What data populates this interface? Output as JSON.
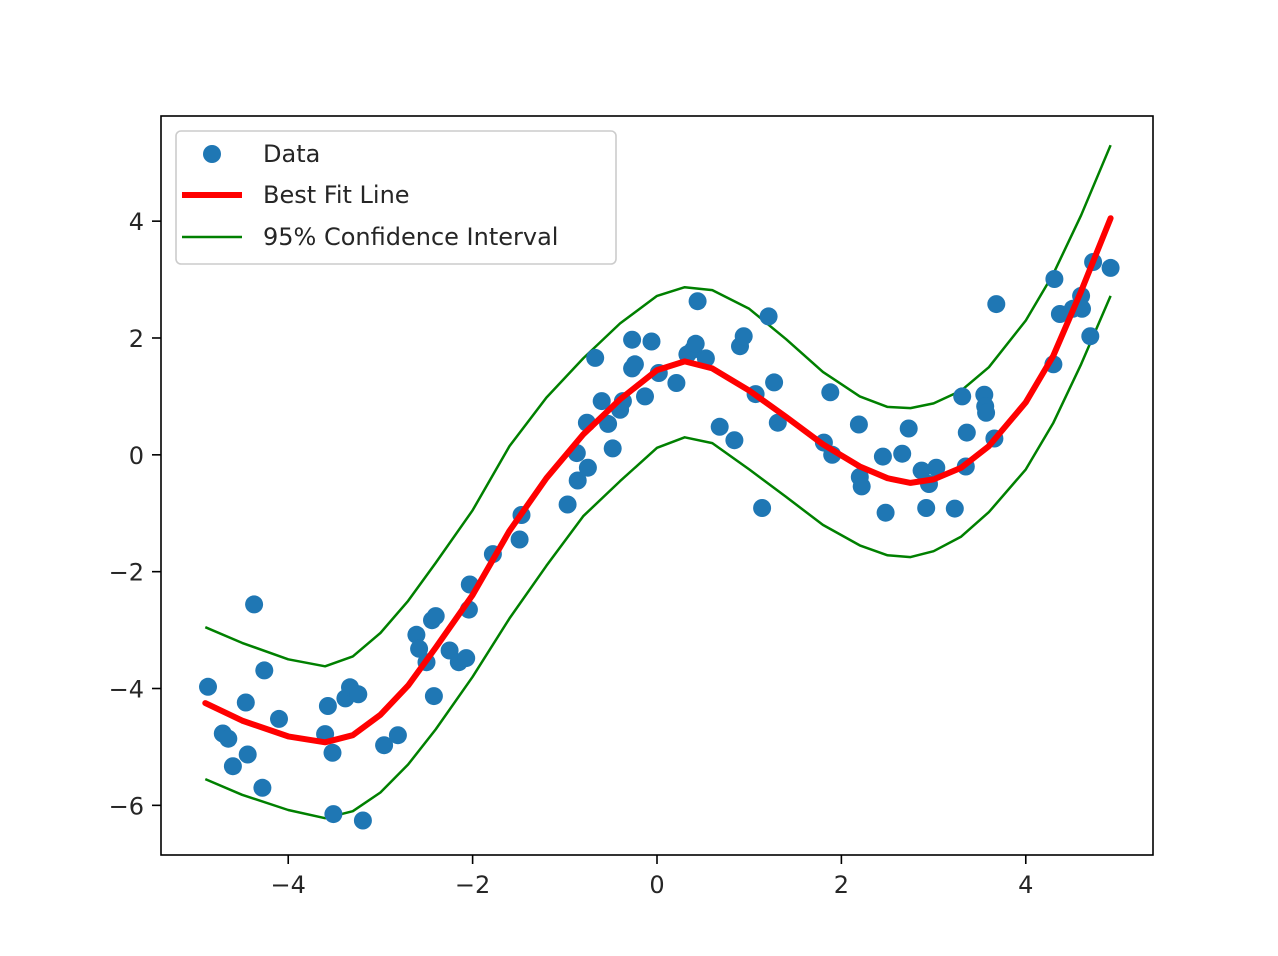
{
  "chart_data": {
    "type": "scatter",
    "title": "",
    "xlabel": "",
    "ylabel": "",
    "xlim": [
      -5.38,
      5.38
    ],
    "ylim": [
      -6.85,
      5.8
    ],
    "grid": false,
    "legend": {
      "placement": "upper-left",
      "entries": [
        "Data",
        "Best Fit Line",
        "95% Confidence Interval"
      ]
    },
    "colors": {
      "data": "#1f77b4",
      "fit": "#ff0000",
      "ci": "#008000",
      "axes": "#000000"
    },
    "x_ticks": [
      {
        "value": -4,
        "label": "−4"
      },
      {
        "value": -2,
        "label": "−2"
      },
      {
        "value": 0,
        "label": "0"
      },
      {
        "value": 2,
        "label": "2"
      },
      {
        "value": 4,
        "label": "4"
      }
    ],
    "y_ticks": [
      {
        "value": -6,
        "label": "−6"
      },
      {
        "value": -4,
        "label": "−4"
      },
      {
        "value": -2,
        "label": "−2"
      },
      {
        "value": 0,
        "label": "0"
      },
      {
        "value": 2,
        "label": "2"
      },
      {
        "value": 4,
        "label": "4"
      }
    ],
    "series": [
      {
        "name": "Data",
        "kind": "scatter",
        "points": [
          [
            -4.87,
            -3.97
          ],
          [
            -4.71,
            -4.77
          ],
          [
            -4.65,
            -4.86
          ],
          [
            -4.6,
            -5.33
          ],
          [
            -4.46,
            -4.24
          ],
          [
            -4.44,
            -5.13
          ],
          [
            -4.37,
            -2.56
          ],
          [
            -4.28,
            -5.7
          ],
          [
            -4.26,
            -3.69
          ],
          [
            -4.1,
            -4.52
          ],
          [
            -3.6,
            -4.78
          ],
          [
            -3.57,
            -4.3
          ],
          [
            -3.52,
            -5.1
          ],
          [
            -3.51,
            -6.15
          ],
          [
            -3.38,
            -4.17
          ],
          [
            -3.33,
            -3.98
          ],
          [
            -3.24,
            -4.1
          ],
          [
            -3.19,
            -6.26
          ],
          [
            -2.96,
            -4.97
          ],
          [
            -2.81,
            -4.8
          ],
          [
            -2.61,
            -3.08
          ],
          [
            -2.58,
            -3.32
          ],
          [
            -2.5,
            -3.55
          ],
          [
            -2.44,
            -2.83
          ],
          [
            -2.42,
            -4.13
          ],
          [
            -2.4,
            -2.76
          ],
          [
            -2.25,
            -3.35
          ],
          [
            -2.15,
            -3.55
          ],
          [
            -2.07,
            -3.48
          ],
          [
            -2.04,
            -2.65
          ],
          [
            -2.03,
            -2.22
          ],
          [
            -1.78,
            -1.7
          ],
          [
            -1.49,
            -1.45
          ],
          [
            -1.47,
            -1.03
          ],
          [
            -0.97,
            -0.85
          ],
          [
            -0.87,
            0.03
          ],
          [
            -0.86,
            -0.44
          ],
          [
            -0.76,
            0.55
          ],
          [
            -0.75,
            -0.22
          ],
          [
            -0.67,
            1.66
          ],
          [
            -0.6,
            0.92
          ],
          [
            -0.53,
            0.53
          ],
          [
            -0.48,
            0.11
          ],
          [
            -0.4,
            0.77
          ],
          [
            -0.37,
            0.92
          ],
          [
            -0.27,
            1.48
          ],
          [
            -0.27,
            1.97
          ],
          [
            -0.24,
            1.55
          ],
          [
            -0.13,
            1.0
          ],
          [
            -0.06,
            1.94
          ],
          [
            0.02,
            1.4
          ],
          [
            0.21,
            1.23
          ],
          [
            0.33,
            1.72
          ],
          [
            0.39,
            1.8
          ],
          [
            0.42,
            1.9
          ],
          [
            0.44,
            2.63
          ],
          [
            0.53,
            1.65
          ],
          [
            0.68,
            0.48
          ],
          [
            0.84,
            0.25
          ],
          [
            0.9,
            1.86
          ],
          [
            0.94,
            2.03
          ],
          [
            1.07,
            1.04
          ],
          [
            1.14,
            -0.91
          ],
          [
            1.21,
            2.37
          ],
          [
            1.27,
            1.24
          ],
          [
            1.31,
            0.55
          ],
          [
            1.81,
            0.21
          ],
          [
            1.88,
            1.07
          ],
          [
            1.9,
            0.0
          ],
          [
            2.19,
            0.52
          ],
          [
            2.2,
            -0.38
          ],
          [
            2.22,
            -0.54
          ],
          [
            2.45,
            -0.03
          ],
          [
            2.48,
            -0.99
          ],
          [
            2.66,
            0.02
          ],
          [
            2.73,
            0.45
          ],
          [
            2.87,
            -0.27
          ],
          [
            2.92,
            -0.91
          ],
          [
            2.95,
            -0.5
          ],
          [
            3.03,
            -0.22
          ],
          [
            3.23,
            -0.92
          ],
          [
            3.31,
            1.0
          ],
          [
            3.35,
            -0.2
          ],
          [
            3.36,
            0.38
          ],
          [
            3.55,
            1.03
          ],
          [
            3.56,
            0.83
          ],
          [
            3.57,
            0.72
          ],
          [
            3.66,
            0.28
          ],
          [
            3.68,
            2.58
          ],
          [
            4.3,
            1.55
          ],
          [
            4.31,
            3.01
          ],
          [
            4.37,
            2.41
          ],
          [
            4.51,
            2.5
          ],
          [
            4.6,
            2.72
          ],
          [
            4.61,
            2.5
          ],
          [
            4.7,
            2.03
          ],
          [
            4.73,
            3.3
          ],
          [
            4.92,
            3.2
          ]
        ]
      },
      {
        "name": "Best Fit Line",
        "kind": "line",
        "points": [
          [
            -4.9,
            -4.25
          ],
          [
            -4.5,
            -4.55
          ],
          [
            -4.0,
            -4.82
          ],
          [
            -3.6,
            -4.92
          ],
          [
            -3.3,
            -4.8
          ],
          [
            -3.0,
            -4.45
          ],
          [
            -2.7,
            -3.95
          ],
          [
            -2.4,
            -3.3
          ],
          [
            -2.0,
            -2.4
          ],
          [
            -1.6,
            -1.3
          ],
          [
            -1.2,
            -0.4
          ],
          [
            -0.8,
            0.35
          ],
          [
            -0.4,
            0.95
          ],
          [
            0.0,
            1.45
          ],
          [
            0.3,
            1.6
          ],
          [
            0.6,
            1.48
          ],
          [
            1.0,
            1.1
          ],
          [
            1.4,
            0.65
          ],
          [
            1.8,
            0.18
          ],
          [
            2.2,
            -0.2
          ],
          [
            2.5,
            -0.4
          ],
          [
            2.75,
            -0.48
          ],
          [
            3.0,
            -0.42
          ],
          [
            3.3,
            -0.22
          ],
          [
            3.6,
            0.15
          ],
          [
            4.0,
            0.9
          ],
          [
            4.3,
            1.7
          ],
          [
            4.6,
            2.8
          ],
          [
            4.92,
            4.05
          ]
        ]
      },
      {
        "name": "95% Confidence Interval",
        "kind": "line",
        "points": [
          [
            -4.9,
            -2.95
          ],
          [
            -4.5,
            -3.22
          ],
          [
            -4.0,
            -3.5
          ],
          [
            -3.6,
            -3.62
          ],
          [
            -3.3,
            -3.45
          ],
          [
            -3.0,
            -3.05
          ],
          [
            -2.7,
            -2.5
          ],
          [
            -2.4,
            -1.85
          ],
          [
            -2.0,
            -0.95
          ],
          [
            -1.6,
            0.15
          ],
          [
            -1.2,
            0.98
          ],
          [
            -0.8,
            1.65
          ],
          [
            -0.4,
            2.25
          ],
          [
            0.0,
            2.72
          ],
          [
            0.3,
            2.87
          ],
          [
            0.6,
            2.82
          ],
          [
            1.0,
            2.5
          ],
          [
            1.4,
            1.98
          ],
          [
            1.8,
            1.42
          ],
          [
            2.2,
            1.0
          ],
          [
            2.5,
            0.82
          ],
          [
            2.75,
            0.8
          ],
          [
            3.0,
            0.88
          ],
          [
            3.3,
            1.1
          ],
          [
            3.6,
            1.5
          ],
          [
            4.0,
            2.3
          ],
          [
            4.3,
            3.1
          ],
          [
            4.6,
            4.1
          ],
          [
            4.92,
            5.3
          ]
        ]
      },
      {
        "name": "95% Confidence Interval",
        "kind": "line",
        "points": [
          [
            -4.9,
            -5.55
          ],
          [
            -4.5,
            -5.82
          ],
          [
            -4.0,
            -6.08
          ],
          [
            -3.6,
            -6.22
          ],
          [
            -3.3,
            -6.1
          ],
          [
            -3.0,
            -5.78
          ],
          [
            -2.7,
            -5.3
          ],
          [
            -2.4,
            -4.7
          ],
          [
            -2.0,
            -3.8
          ],
          [
            -1.6,
            -2.8
          ],
          [
            -1.2,
            -1.9
          ],
          [
            -0.8,
            -1.05
          ],
          [
            -0.4,
            -0.45
          ],
          [
            0.0,
            0.12
          ],
          [
            0.3,
            0.3
          ],
          [
            0.6,
            0.2
          ],
          [
            1.0,
            -0.25
          ],
          [
            1.4,
            -0.72
          ],
          [
            1.8,
            -1.2
          ],
          [
            2.2,
            -1.55
          ],
          [
            2.5,
            -1.72
          ],
          [
            2.75,
            -1.75
          ],
          [
            3.0,
            -1.65
          ],
          [
            3.3,
            -1.4
          ],
          [
            3.6,
            -0.98
          ],
          [
            4.0,
            -0.25
          ],
          [
            4.3,
            0.55
          ],
          [
            4.6,
            1.55
          ],
          [
            4.92,
            2.72
          ]
        ]
      }
    ]
  }
}
